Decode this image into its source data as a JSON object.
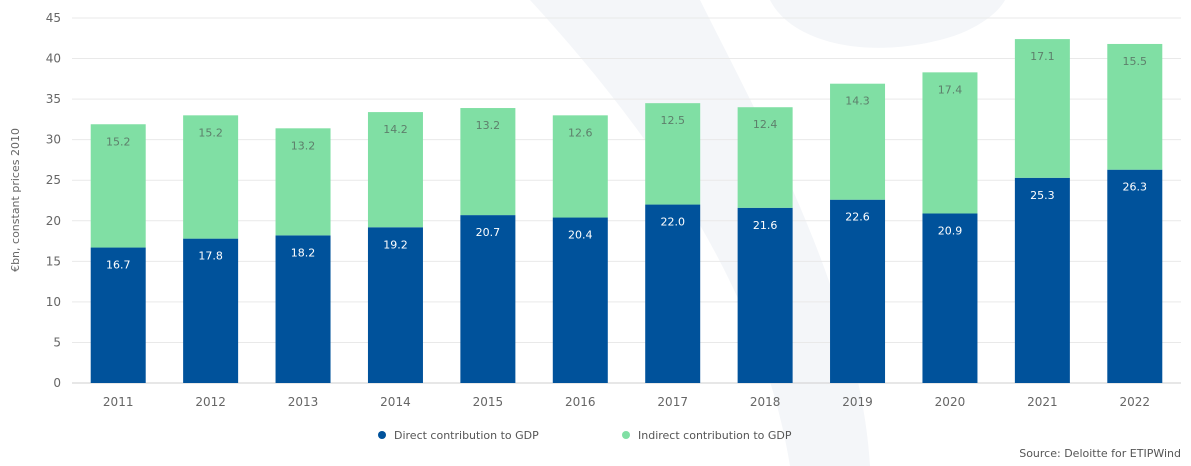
{
  "chart_data": {
    "type": "bar",
    "stacked": true,
    "categories": [
      "2011",
      "2012",
      "2013",
      "2014",
      "2015",
      "2016",
      "2017",
      "2018",
      "2019",
      "2020",
      "2021",
      "2022"
    ],
    "series": [
      {
        "name": "Direct contribution to GDP",
        "color": "#00529b",
        "values": [
          16.7,
          17.8,
          18.2,
          19.2,
          20.7,
          20.4,
          22.0,
          21.6,
          22.6,
          20.9,
          25.3,
          26.3
        ],
        "labels": [
          "16.7",
          "17.8",
          "18.2",
          "19.2",
          "20.7",
          "20.4",
          "22.0",
          "21.6",
          "22.6",
          "20.9",
          "25.3",
          "26.3"
        ],
        "label_color": "#ffffff"
      },
      {
        "name": "Indirect contribution to GDP",
        "color": "#80dfa4",
        "values": [
          15.2,
          15.2,
          13.2,
          14.2,
          13.2,
          12.6,
          12.5,
          12.4,
          14.3,
          17.4,
          17.1,
          15.5
        ],
        "labels": [
          "15.2",
          "15.2",
          "13.2",
          "14.2",
          "13.2",
          "12.6",
          "12.5",
          "12.4",
          "14.3",
          "17.4",
          "17.1",
          "15.5"
        ],
        "label_color": "#5d7f6b"
      }
    ],
    "ylabel": "€bn, constant prices 2010",
    "ylim": [
      0,
      45
    ],
    "yticks": [
      0,
      5,
      10,
      15,
      20,
      25,
      30,
      35,
      40,
      45
    ],
    "grid": true,
    "legend_position": "bottom-center",
    "source": "Source: Deloitte for ETIPWind"
  }
}
